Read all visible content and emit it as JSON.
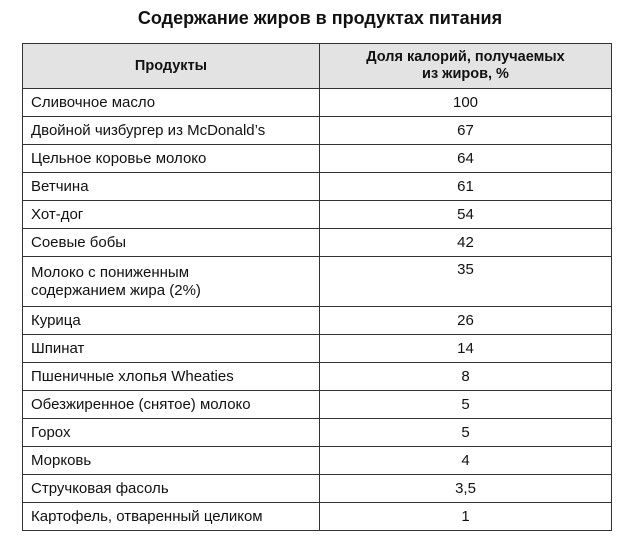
{
  "title": "Содержание жиров в продуктах питания",
  "table": {
    "headers": [
      "Продукты",
      "Доля калорий, получаемых",
      "из жиров, %"
    ],
    "rows": [
      {
        "product": "Сливочное масло",
        "value": "100"
      },
      {
        "product": "Двойной чизбургер из McDonald’s",
        "value": "67"
      },
      {
        "product": "Цельное коровье молоко",
        "value": "64"
      },
      {
        "product": "Ветчина",
        "value": "61"
      },
      {
        "product": "Хот-дог",
        "value": "54"
      },
      {
        "product": "Соевые бобы",
        "value": "42"
      },
      {
        "product": "Молоко с пониженным",
        "product2": "содержанием жира (2%)",
        "value": "35"
      },
      {
        "product": "Курица",
        "value": "26"
      },
      {
        "product": "Шпинат",
        "value": "14"
      },
      {
        "product": "Пшеничные хлопья Wheaties",
        "value": "8"
      },
      {
        "product": "Обезжиренное (снятое) молоко",
        "value": "5"
      },
      {
        "product": "Горох",
        "value": "5"
      },
      {
        "product": "Морковь",
        "value": "4"
      },
      {
        "product": "Стручковая фасоль",
        "value": "3,5"
      },
      {
        "product": "Картофель, отваренный целиком",
        "value": "1"
      }
    ]
  }
}
